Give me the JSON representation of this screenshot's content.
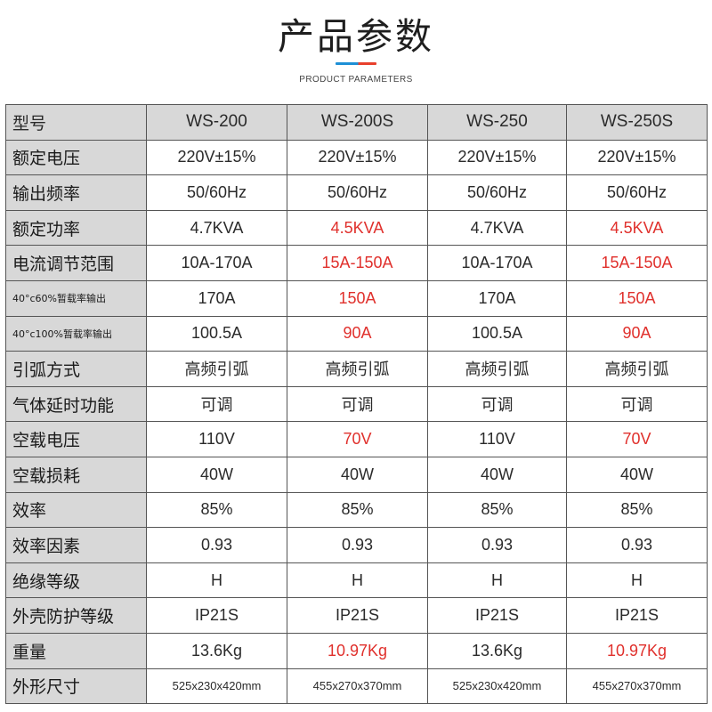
{
  "header": {
    "title": "产品参数",
    "subtitle": "PRODUCT PARAMETERS",
    "accent_colors": [
      "#1d8fd6",
      "#e8402c"
    ]
  },
  "table": {
    "header_label": "型号",
    "models": [
      "WS-200",
      "WS-200S",
      "WS-250",
      "WS-250S"
    ],
    "highlight_color": "#e0302c",
    "rows": [
      {
        "label": "额定电压",
        "values": [
          "220V±15%",
          "220V±15%",
          "220V±15%",
          "220V±15%"
        ],
        "red": [
          false,
          false,
          false,
          false
        ]
      },
      {
        "label": "输出频率",
        "values": [
          "50/60Hz",
          "50/60Hz",
          "50/60Hz",
          "50/60Hz"
        ],
        "red": [
          false,
          false,
          false,
          false
        ]
      },
      {
        "label": "额定功率",
        "values": [
          "4.7KVA",
          "4.5KVA",
          "4.7KVA",
          "4.5KVA"
        ],
        "red": [
          false,
          true,
          false,
          true
        ]
      },
      {
        "label": "电流调节范围",
        "values": [
          "10A-170A",
          "15A-150A",
          "10A-170A",
          "15A-150A"
        ],
        "red": [
          false,
          true,
          false,
          true
        ]
      },
      {
        "label": "40°c60%暂载率输出",
        "values": [
          "170A",
          "150A",
          "170A",
          "150A"
        ],
        "red": [
          false,
          true,
          false,
          true
        ],
        "small": true
      },
      {
        "label": "40°c100%暂载率输出",
        "values": [
          "100.5A",
          "90A",
          "100.5A",
          "90A"
        ],
        "red": [
          false,
          true,
          false,
          true
        ],
        "small": true
      },
      {
        "label": "引弧方式",
        "values": [
          "高频引弧",
          "高频引弧",
          "高频引弧",
          "高频引弧"
        ],
        "red": [
          false,
          false,
          false,
          false
        ],
        "cjk": true
      },
      {
        "label": "气体延时功能",
        "values": [
          "可调",
          "可调",
          "可调",
          "可调"
        ],
        "red": [
          false,
          false,
          false,
          false
        ],
        "cjk": true
      },
      {
        "label": "空载电压",
        "values": [
          "110V",
          "70V",
          "110V",
          "70V"
        ],
        "red": [
          false,
          true,
          false,
          true
        ]
      },
      {
        "label": "空载损耗",
        "values": [
          "40W",
          "40W",
          "40W",
          "40W"
        ],
        "red": [
          false,
          false,
          false,
          false
        ]
      },
      {
        "label": "效率",
        "values": [
          "85%",
          "85%",
          "85%",
          "85%"
        ],
        "red": [
          false,
          false,
          false,
          false
        ]
      },
      {
        "label": "效率因素",
        "values": [
          "0.93",
          "0.93",
          "0.93",
          "0.93"
        ],
        "red": [
          false,
          false,
          false,
          false
        ]
      },
      {
        "label": "绝缘等级",
        "values": [
          "H",
          "H",
          "H",
          "H"
        ],
        "red": [
          false,
          false,
          false,
          false
        ]
      },
      {
        "label": "外壳防护等级",
        "values": [
          "IP21S",
          "IP21S",
          "IP21S",
          "IP21S"
        ],
        "red": [
          false,
          false,
          false,
          false
        ]
      },
      {
        "label": "重量",
        "values": [
          "13.6Kg",
          "10.97Kg",
          "13.6Kg",
          "10.97Kg"
        ],
        "red": [
          false,
          true,
          false,
          true
        ]
      },
      {
        "label": "外形尺寸",
        "values": [
          "525x230x420mm",
          "455x270x370mm",
          "525x230x420mm",
          "455x270x370mm"
        ],
        "red": [
          false,
          false,
          false,
          false
        ],
        "dims": true
      }
    ]
  }
}
